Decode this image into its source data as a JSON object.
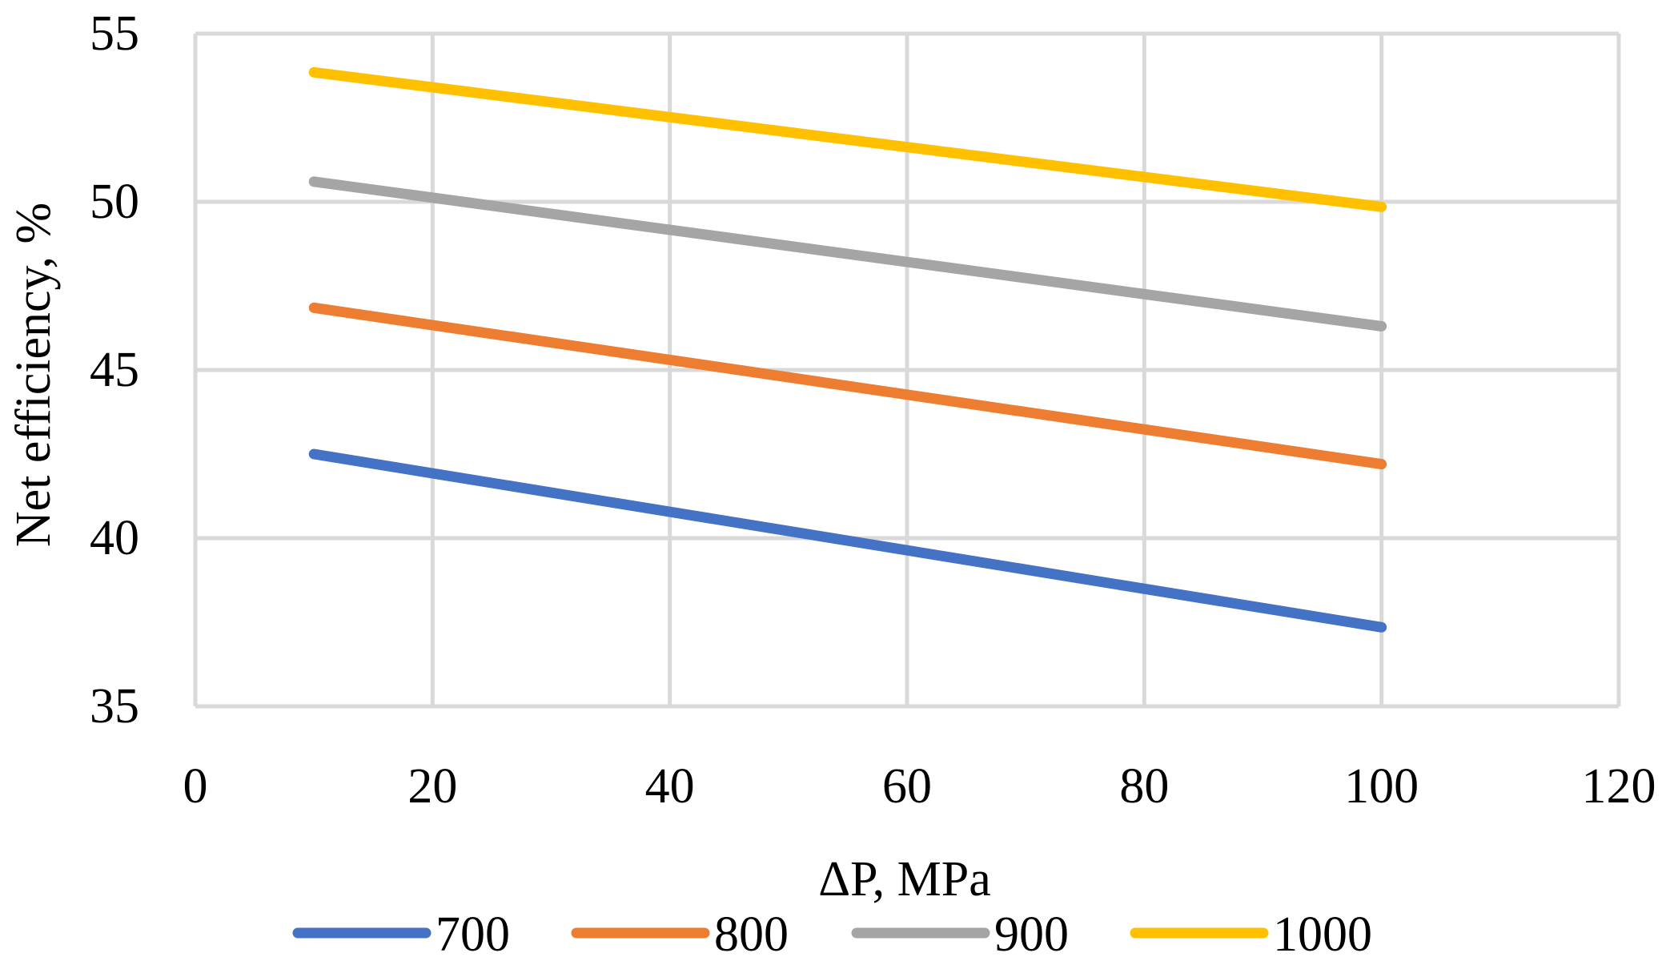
{
  "chart_data": {
    "type": "line",
    "title": "",
    "xlabel": "ΔP, MPa",
    "ylabel": "Net efficiency, %",
    "xlim": [
      0,
      120
    ],
    "ylim": [
      35,
      55
    ],
    "x_ticks": [
      0,
      20,
      40,
      60,
      80,
      100,
      120
    ],
    "y_ticks": [
      35,
      40,
      45,
      50,
      55
    ],
    "x_tick_labels": [
      "0",
      "20",
      "40",
      "60",
      "80",
      "100",
      "120"
    ],
    "y_tick_labels": [
      "35",
      "40",
      "45",
      "50",
      "55"
    ],
    "grid": true,
    "legend_position": "bottom",
    "x": [
      10,
      100
    ],
    "series": [
      {
        "name": "700",
        "color": "#4472c4",
        "values": [
          42.5,
          37.35
        ]
      },
      {
        "name": "800",
        "color": "#ed7d31",
        "values": [
          46.85,
          42.2
        ]
      },
      {
        "name": "900",
        "color": "#a5a5a5",
        "values": [
          50.6,
          46.3
        ]
      },
      {
        "name": "1000",
        "color": "#ffc000",
        "values": [
          53.85,
          49.85
        ]
      }
    ]
  }
}
